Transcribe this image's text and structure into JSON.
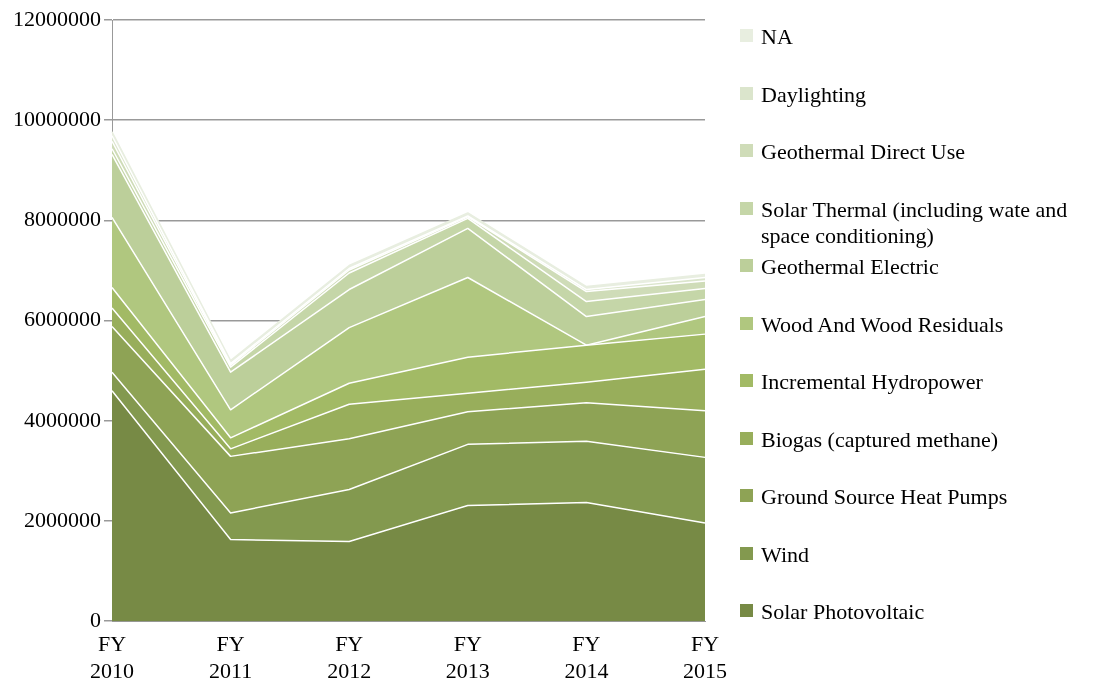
{
  "chart_data": {
    "type": "area",
    "stacked": true,
    "categories": [
      "FY 2010",
      "FY 2011",
      "FY 2012",
      "FY 2013",
      "FY 2014",
      "FY 2015"
    ],
    "ylim": [
      0,
      12000000
    ],
    "yticks": [
      0,
      2000000,
      4000000,
      6000000,
      8000000,
      10000000,
      12000000
    ],
    "grid": "y",
    "legend": "right",
    "series": [
      {
        "name": "Solar Photovoltaic",
        "color": "#778a45",
        "values": [
          4600000,
          1630000,
          1590000,
          2310000,
          2370000,
          1960000
        ]
      },
      {
        "name": "Wind",
        "color": "#83994f",
        "values": [
          370000,
          530000,
          1040000,
          1220000,
          1220000,
          1310000
        ]
      },
      {
        "name": "Ground Source Heat Pumps",
        "color": "#8ea355",
        "values": [
          910000,
          1130000,
          1010000,
          650000,
          770000,
          930000
        ]
      },
      {
        "name": "Biogas (captured methane)",
        "color": "#98ae5b",
        "values": [
          370000,
          150000,
          690000,
          370000,
          410000,
          830000
        ]
      },
      {
        "name": "Incremental Hydropower",
        "color": "#a2ba65",
        "values": [
          410000,
          220000,
          420000,
          720000,
          740000,
          700000
        ]
      },
      {
        "name": "Wood And Wood Residuals",
        "color": "#b0c77f",
        "values": [
          1400000,
          560000,
          1110000,
          1590000,
          0,
          350000
        ]
      },
      {
        "name": "Geothermal Electric",
        "color": "#bccf9a",
        "values": [
          1260000,
          750000,
          760000,
          980000,
          570000,
          340000
        ]
      },
      {
        "name": "Solar Thermal (including wate and space conditioning)",
        "color": "#c5d6a8",
        "values": [
          110000,
          100000,
          330000,
          200000,
          300000,
          220000
        ]
      },
      {
        "name": "Geothermal Direct Use",
        "color": "#cfdcb8",
        "values": [
          150000,
          40000,
          60000,
          30000,
          200000,
          150000
        ]
      },
      {
        "name": "Daylighting",
        "color": "#dbe5cc",
        "values": [
          110000,
          30000,
          30000,
          20000,
          40000,
          70000
        ]
      },
      {
        "name": "NA",
        "color": "#e8eee0",
        "values": [
          80000,
          60000,
          60000,
          60000,
          60000,
          60000
        ]
      }
    ]
  }
}
